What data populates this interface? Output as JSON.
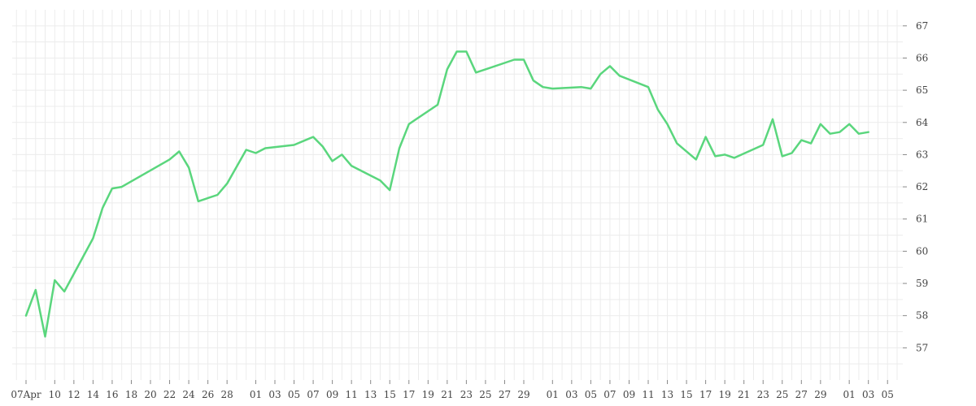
{
  "chart_data": {
    "type": "line",
    "line_color": "#5ad67d",
    "grid_color": "#ececec",
    "grid": true,
    "y_axis_position": "right",
    "ylim": [
      56,
      67.5
    ],
    "y_ticks": [
      57,
      58,
      59,
      60,
      61,
      62,
      63,
      64,
      65,
      66,
      67
    ],
    "x_tick_labels": [
      "07Apr",
      "10",
      "12",
      "14",
      "16",
      "18",
      "20",
      "22",
      "24",
      "26",
      "28",
      "01",
      "03",
      "05",
      "07",
      "09",
      "11",
      "13",
      "15",
      "17",
      "19",
      "21",
      "23",
      "25",
      "27",
      "29",
      "01",
      "03",
      "05",
      "07",
      "09",
      "11",
      "13",
      "15",
      "17",
      "19",
      "21",
      "23",
      "25",
      "27",
      "29",
      "01",
      "03",
      "05"
    ],
    "x_tick_index": [
      0,
      3,
      5,
      7,
      9,
      11,
      13,
      15,
      17,
      19,
      21,
      24,
      26,
      28,
      30,
      32,
      34,
      36,
      38,
      40,
      42,
      44,
      46,
      48,
      50,
      52,
      55,
      57,
      59,
      61,
      63,
      65,
      67,
      69,
      71,
      73,
      75,
      77,
      79,
      81,
      83,
      86,
      88,
      90
    ],
    "x_index_max": 91,
    "series": [
      {
        "x": [
          0,
          1,
          2,
          3,
          4,
          7,
          8,
          9,
          10,
          15,
          16,
          17,
          18,
          20,
          21,
          23,
          24,
          25,
          28,
          30,
          31,
          32,
          33,
          34,
          36,
          37,
          38,
          39,
          40,
          43,
          44,
          45,
          46,
          47,
          48,
          51,
          52,
          53,
          54,
          55,
          58,
          59,
          60,
          61,
          62,
          65,
          66,
          67,
          68,
          70,
          71,
          72,
          73,
          74,
          77,
          78,
          79,
          80,
          81,
          82,
          83,
          84,
          85,
          86,
          87,
          88
        ],
        "values": [
          58.0,
          58.8,
          57.35,
          59.1,
          58.75,
          60.4,
          61.35,
          61.95,
          62.0,
          62.85,
          63.1,
          62.6,
          61.55,
          61.75,
          62.1,
          63.15,
          63.05,
          63.2,
          63.3,
          63.55,
          63.25,
          62.8,
          63.0,
          62.65,
          62.35,
          62.2,
          61.9,
          63.2,
          63.95,
          64.55,
          65.65,
          66.2,
          66.2,
          65.55,
          65.65,
          65.95,
          65.95,
          65.3,
          65.1,
          65.05,
          65.1,
          65.05,
          65.5,
          65.75,
          65.45,
          65.1,
          64.4,
          63.95,
          63.35,
          62.85,
          63.55,
          62.95,
          63.0,
          62.9,
          63.3,
          64.1,
          62.95,
          63.05,
          63.45,
          63.35,
          63.95,
          63.65,
          63.7,
          63.95,
          63.65,
          63.7
        ]
      }
    ]
  }
}
